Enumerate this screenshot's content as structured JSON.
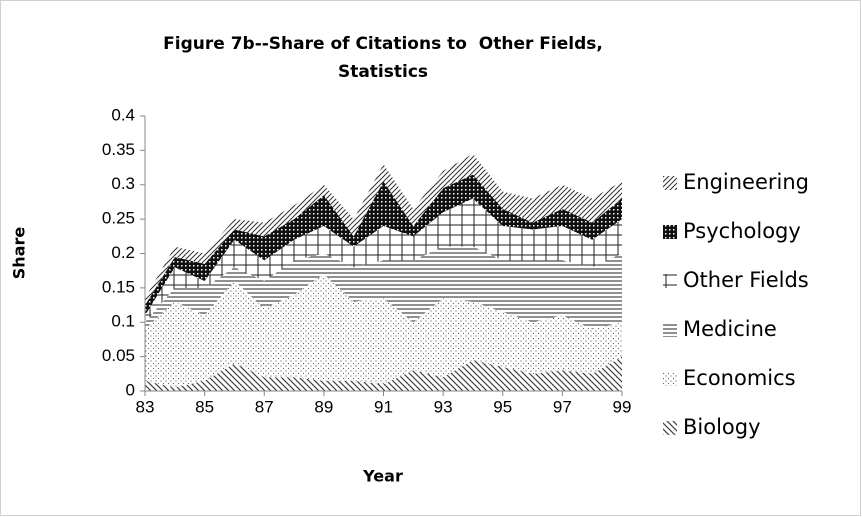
{
  "chart_data": {
    "type": "stacked_area",
    "title": [
      "Figure 7b--Share of Citations to  Other Fields,",
      "Statistics"
    ],
    "x_label": "Year",
    "y_label": "Share",
    "x": [
      83,
      84,
      85,
      86,
      87,
      88,
      89,
      90,
      91,
      92,
      93,
      94,
      95,
      96,
      97,
      98,
      99
    ],
    "xlim": [
      83,
      99
    ],
    "xticks": [
      83,
      85,
      87,
      89,
      91,
      93,
      95,
      97,
      99
    ],
    "ylim": [
      0,
      0.4
    ],
    "yticks": [
      0,
      0.05,
      0.1,
      0.15,
      0.2,
      0.25,
      0.3,
      0.35,
      0.4
    ],
    "legend": "right",
    "series": [
      {
        "name": "Biology",
        "color": "#404040",
        "values": [
          0.015,
          0.005,
          0.015,
          0.04,
          0.02,
          0.02,
          0.015,
          0.015,
          0.01,
          0.03,
          0.02,
          0.045,
          0.035,
          0.025,
          0.03,
          0.025,
          0.05
        ]
      },
      {
        "name": "Economics",
        "color": "#606060",
        "values": [
          0.075,
          0.125,
          0.095,
          0.12,
          0.1,
          0.12,
          0.155,
          0.115,
          0.125,
          0.07,
          0.115,
          0.085,
          0.08,
          0.075,
          0.08,
          0.065,
          0.05
        ]
      },
      {
        "name": "Medicine",
        "color": "#202020",
        "values": [
          0.01,
          0.02,
          0.04,
          0.02,
          0.04,
          0.05,
          0.03,
          0.05,
          0.055,
          0.09,
          0.075,
          0.08,
          0.075,
          0.09,
          0.08,
          0.09,
          0.1
        ]
      },
      {
        "name": "Other Fields",
        "color": "#202020",
        "values": [
          0.01,
          0.03,
          0.01,
          0.04,
          0.03,
          0.03,
          0.04,
          0.03,
          0.05,
          0.035,
          0.05,
          0.07,
          0.05,
          0.045,
          0.05,
          0.04,
          0.05
        ]
      },
      {
        "name": "Psychology",
        "color": "#101010",
        "values": [
          0.015,
          0.015,
          0.025,
          0.015,
          0.035,
          0.03,
          0.045,
          0.015,
          0.065,
          0.015,
          0.035,
          0.035,
          0.025,
          0.01,
          0.025,
          0.025,
          0.03
        ]
      },
      {
        "name": "Engineering",
        "color": "#303030",
        "values": [
          0.01,
          0.015,
          0.015,
          0.015,
          0.02,
          0.02,
          0.015,
          0.025,
          0.025,
          0.025,
          0.025,
          0.03,
          0.025,
          0.035,
          0.035,
          0.035,
          0.025
        ]
      }
    ]
  }
}
